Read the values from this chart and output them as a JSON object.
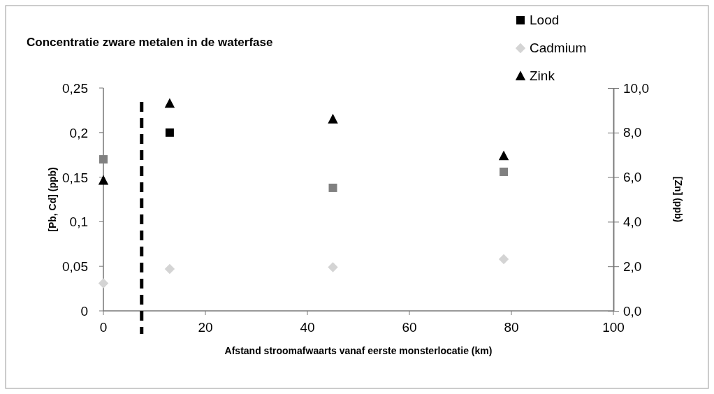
{
  "chart_data": {
    "type": "scatter",
    "title": "Concentratie zware metalen in de waterfase",
    "xlabel": "Afstand stroomafwaarts vanaf eerste monsterlocatie (km)",
    "ylabel": "[Pb, Cd] (ppb)",
    "y2label": "[Zn] (ppb)",
    "xlim": [
      0,
      100
    ],
    "xticks": [
      0,
      20,
      40,
      60,
      80,
      100
    ],
    "ylim": [
      0,
      0.25
    ],
    "yticks": [
      {
        "value": 0,
        "label": "0"
      },
      {
        "value": 0.05,
        "label": "0,05"
      },
      {
        "value": 0.1,
        "label": "0,1"
      },
      {
        "value": 0.15,
        "label": "0,15"
      },
      {
        "value": 0.2,
        "label": "0,2"
      },
      {
        "value": 0.25,
        "label": "0,25"
      }
    ],
    "y2lim": [
      0,
      10
    ],
    "y2ticks": [
      {
        "value": 0,
        "label": "0,0"
      },
      {
        "value": 2,
        "label": "2,0"
      },
      {
        "value": 4,
        "label": "4,0"
      },
      {
        "value": 6,
        "label": "6,0"
      },
      {
        "value": 8,
        "label": "8,0"
      },
      {
        "value": 10,
        "label": "10,0"
      }
    ],
    "series": [
      {
        "name": "Lood",
        "color": "#000000",
        "colors": [
          "#808080",
          "#000000",
          "#808080",
          "#808080"
        ],
        "marker": "square",
        "x": [
          0,
          13,
          45,
          78.5
        ],
        "values": [
          0.17,
          0.2,
          0.138,
          0.156
        ]
      },
      {
        "name": "Cadmium",
        "color": "#d4d4d4",
        "marker": "diamond",
        "x": [
          0,
          13,
          45,
          78.5
        ],
        "values": [
          0.031,
          0.047,
          0.049,
          0.058
        ]
      },
      {
        "name": "Zink",
        "color": "#000000",
        "marker": "triangle",
        "axis": "y2",
        "x": [
          0,
          13,
          45,
          78.5
        ],
        "values": [
          5.85,
          9.3,
          8.6,
          6.95
        ]
      }
    ],
    "ref_lines": [
      {
        "axis": "x",
        "value": 7.5,
        "color": "#000000",
        "line_style": "dashed"
      }
    ],
    "grid": false,
    "legend": "top right"
  }
}
